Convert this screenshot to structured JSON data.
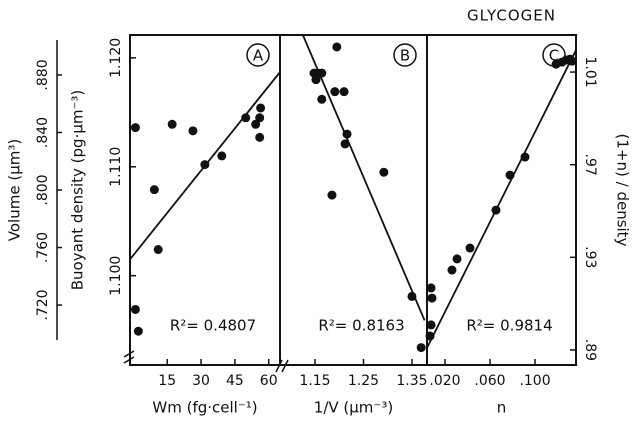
{
  "chart_data": [
    {
      "type": "scatter",
      "panel_label": "A",
      "annotation": "R²= 0.4807",
      "xlabel": "Wm (fg·cell⁻¹)",
      "xlim": [
        -1.5,
        65
      ],
      "xticks": [
        15,
        30,
        45,
        60
      ],
      "ylabel": "Buoyant density (pg·μm⁻³)",
      "ylim": [
        1.0918,
        1.1221
      ],
      "yticks": [
        {
          "value": 1.1,
          "label": "1.100"
        },
        {
          "value": 1.11,
          "label": "1.110"
        },
        {
          "value": 1.12,
          "label": "1.120"
        }
      ],
      "y2label": "Volume (μm³)",
      "y2_position": "left",
      "y2lim": [
        0.6783,
        0.9078
      ],
      "y2ticks": [
        {
          "value": 0.72,
          "label": ".720"
        },
        {
          "value": 0.76,
          "label": ".760"
        },
        {
          "value": 0.8,
          "label": ".800"
        },
        {
          "value": 0.84,
          "label": ".840"
        },
        {
          "value": 0.88,
          "label": ".880"
        }
      ],
      "color": "#111111",
      "points": {
        "x": [
          0.9,
          0.9,
          2.2,
          9.3,
          11.0,
          17.2,
          26.4,
          31.7,
          39.2,
          49.8,
          54.2,
          56.0,
          56.0,
          56.4
        ],
        "y": [
          1.1136,
          1.0969,
          1.0949,
          1.1079,
          1.1024,
          1.1139,
          1.1133,
          1.1102,
          1.111,
          1.1145,
          1.1139,
          1.1145,
          1.1127,
          1.1154
        ]
      },
      "fit": {
        "x": [
          -1.5,
          65
        ],
        "y": [
          1.1015,
          1.1187
        ]
      }
    },
    {
      "type": "scatter",
      "panel_label": "B",
      "annotation": "R²= 0.8163",
      "xlabel": "1/V (μm⁻³)",
      "xlim": [
        1.0778,
        1.381
      ],
      "xticks": [
        1.15,
        1.25,
        1.35
      ],
      "ylim": [
        1.0918,
        1.1221
      ],
      "color": "#111111",
      "points": {
        "x": [
          1.148,
          1.156,
          1.164,
          1.152,
          1.164,
          1.195,
          1.191,
          1.21,
          1.216,
          1.212,
          1.185,
          1.292,
          1.35,
          1.369
        ],
        "y": [
          1.1186,
          1.1186,
          1.1186,
          1.118,
          1.1162,
          1.121,
          1.1169,
          1.1169,
          1.113,
          1.1121,
          1.1074,
          1.1095,
          1.0981,
          1.0934
        ]
      },
      "fit": {
        "x": [
          1.125,
          1.376
        ],
        "y": [
          1.1221,
          1.0959
        ]
      }
    },
    {
      "type": "scatter",
      "title": "GLYCOGEN",
      "panel_label": "C",
      "annotation": "R²= 0.9814",
      "xlabel": "n",
      "xlim": [
        0.004,
        0.1364
      ],
      "xticks": [
        {
          "value": 0.02,
          "label": ".020"
        },
        {
          "value": 0.06,
          "label": ".060"
        },
        {
          "value": 0.1,
          "label": ".100"
        }
      ],
      "y2label": "(1+n) / density",
      "y2_position": "right",
      "y2lim": [
        0.8835,
        1.026
      ],
      "y2ticks": [
        {
          "value": 0.89,
          "label": ".89"
        },
        {
          "value": 0.93,
          "label": ".93"
        },
        {
          "value": 0.97,
          "label": ".97"
        },
        {
          "value": 1.01,
          "label": "1.01"
        }
      ],
      "color": "#111111",
      "points": {
        "axis": "y2",
        "x": [
          0.0067,
          0.0076,
          0.0084,
          0.0076,
          0.0262,
          0.0307,
          0.0422,
          0.0653,
          0.0778,
          0.0911,
          0.1187,
          0.124,
          0.1276,
          0.1311,
          0.1329
        ],
        "y": [
          0.896,
          0.9008,
          0.9124,
          0.9168,
          0.9245,
          0.9293,
          0.934,
          0.9504,
          0.9655,
          0.9733,
          1.0134,
          1.0143,
          1.0152,
          1.0156,
          1.0147
        ]
      },
      "fit": {
        "axis": "y2",
        "x": [
          0.004,
          0.1364
        ],
        "y": [
          0.8909,
          1.0195
        ]
      }
    }
  ]
}
